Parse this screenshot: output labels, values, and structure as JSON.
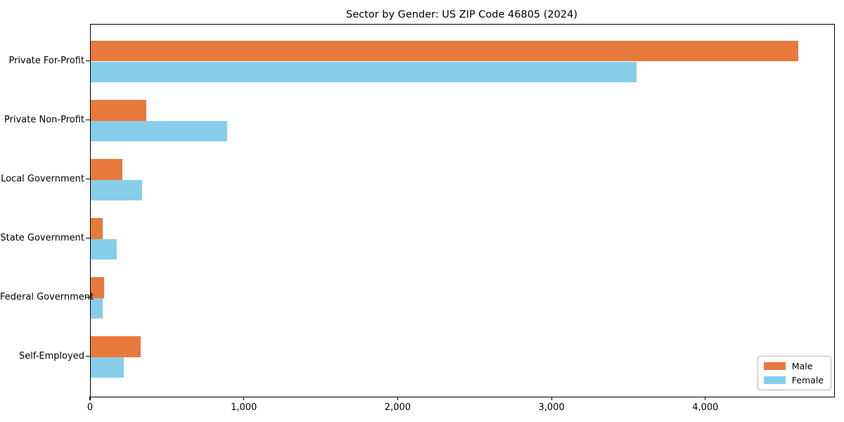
{
  "chart_data": {
    "type": "bar",
    "orientation": "horizontal",
    "title": "Sector by Gender: US ZIP Code 46805 (2024)",
    "categories": [
      "Private For-Profit",
      "Private Non-Profit",
      "Local Government",
      "State Government",
      "Federal Government",
      "Self-Employed"
    ],
    "series": [
      {
        "name": "Male",
        "color": "#E8793D",
        "values": [
          4600,
          360,
          205,
          78,
          88,
          325
        ]
      },
      {
        "name": "Female",
        "color": "#87CEEB",
        "values": [
          3550,
          885,
          335,
          170,
          80,
          215
        ]
      }
    ],
    "xlabel": "",
    "ylabel": "",
    "xlim": [
      0,
      4833
    ],
    "xticks": [
      0,
      1000,
      2000,
      3000,
      4000
    ],
    "xtick_labels": [
      "0",
      "1,000",
      "2,000",
      "3,000",
      "4,000"
    ],
    "grid": false,
    "legend": {
      "position": "lower right",
      "entries": [
        "Male",
        "Female"
      ]
    }
  },
  "colors": {
    "male": "#E8793D",
    "female": "#87CEEB",
    "spine": "#000000",
    "legend_border": "#b5b5b5",
    "background": "#ffffff",
    "text": "#000000"
  }
}
